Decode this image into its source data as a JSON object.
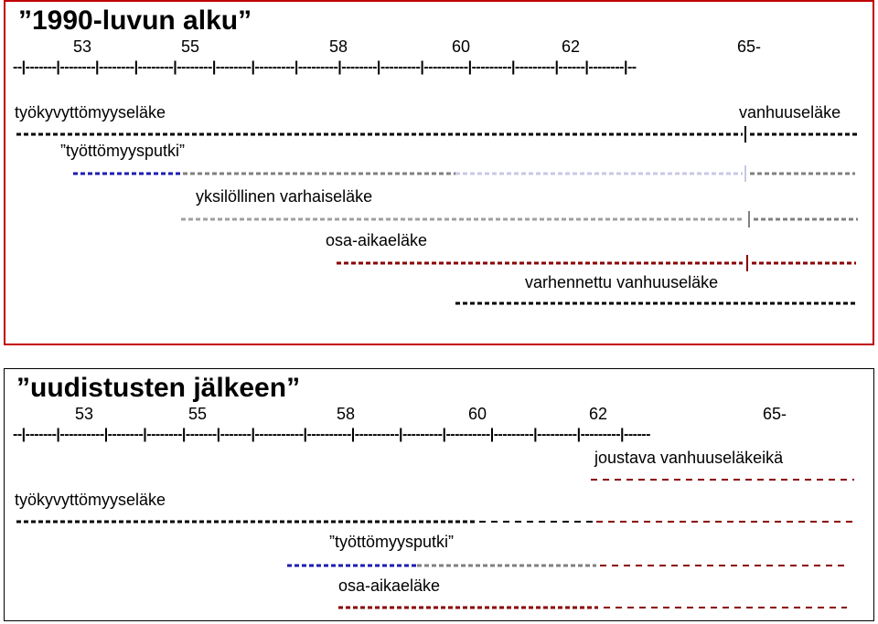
{
  "top": {
    "title": "”1990-luvun alku”",
    "ages": [
      "53",
      "55",
      "58",
      "60",
      "62",
      "65-"
    ],
    "axis": "--|-------|--------|--------|--------|--------|--------|---------|---------|--------|---------|----------|---------|---------|------|--------|--",
    "rows": [
      {
        "label": "työkyvyttömyyseläke",
        "color": "#000000"
      },
      {
        "label": "vanhuuseläke",
        "color": "#000000"
      },
      {
        "label": "”työttömyysputki”",
        "color": "#00008b"
      },
      {
        "label": "yksilöllinen varhaiseläke",
        "color": "#808080"
      },
      {
        "label": "osa-aikaeläke",
        "color": "#8b0000"
      },
      {
        "label": "varhennettu vanhuuseläke",
        "color": "#000000"
      }
    ]
  },
  "bottom": {
    "title": "”uudistusten jälkeen”",
    "ages": [
      "53",
      "55",
      "58",
      "60",
      "62",
      "65-"
    ],
    "axis": "--|-------|----------|--------|--------|-------|-------|-----------|----------|----------|---------|----------|---------|---------|---------|------",
    "rows": [
      {
        "label": "joustava vanhuuseläkeikä",
        "color": "#8b0000"
      },
      {
        "label": "työkyvyttömyyseläke",
        "color": "#000000"
      },
      {
        "label": "”työttömyysputki”",
        "color": "#00008b"
      },
      {
        "label": "osa-aikaeläke",
        "color": "#8b0000"
      }
    ]
  }
}
